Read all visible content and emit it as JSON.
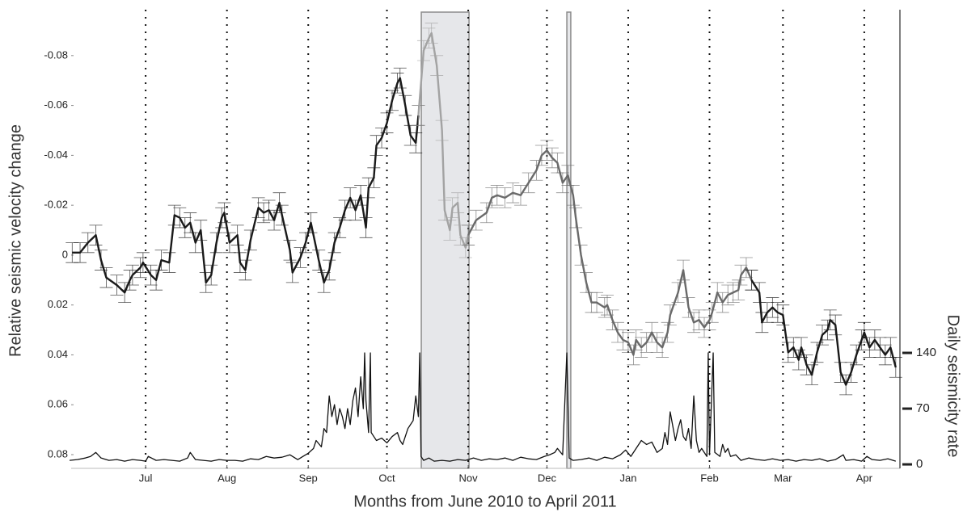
{
  "chart_data": {
    "type": "line",
    "x_label": "Months from June 2010 to April 2011",
    "y_label": "Relative seismic velocity change",
    "y2_label": "Daily seismicity rate",
    "xlim": [
      1.6,
      317.6
    ],
    "xticks": [
      {
        "value": 30,
        "label": "Jul"
      },
      {
        "value": 61,
        "label": "Aug"
      },
      {
        "value": 92,
        "label": "Sep"
      },
      {
        "value": 122,
        "label": "Oct"
      },
      {
        "value": 153,
        "label": "Nov"
      },
      {
        "value": 183,
        "label": "Dec"
      },
      {
        "value": 214,
        "label": "Jan"
      },
      {
        "value": 245,
        "label": "Feb"
      },
      {
        "value": 273,
        "label": "Mar"
      },
      {
        "value": 304,
        "label": "Apr"
      }
    ],
    "ylim": [
      0.0855,
      -0.0984
    ],
    "yticks": [
      -0.08,
      -0.06,
      -0.04,
      -0.02,
      0,
      0.02,
      0.04,
      0.06,
      0.08
    ],
    "y2lim": [
      -5,
      571
    ],
    "y2ticks": [
      0,
      70,
      140
    ],
    "grid": true,
    "error_bar": 0.004,
    "spans": [
      [
        135.1,
        153.3
      ],
      [
        190.6,
        192.1
      ]
    ],
    "series": [
      {
        "color": "#1a1a1a",
        "x": [
          2,
          5,
          8,
          11,
          13,
          15,
          19,
          22,
          24,
          25,
          28,
          29,
          32,
          34,
          36,
          39,
          41,
          43,
          45,
          47,
          49,
          51,
          53,
          55,
          57,
          59,
          60,
          62,
          65,
          66,
          68,
          70,
          73,
          75,
          77,
          79,
          81,
          82,
          85,
          86,
          89,
          91,
          93,
          96,
          98,
          100,
          102,
          104,
          106,
          108,
          110,
          112,
          114,
          115,
          117,
          118,
          120,
          122,
          124,
          126,
          127,
          129,
          131,
          133,
          134
        ],
        "values": [
          -0.001,
          -0.001,
          -0.005,
          -0.008,
          0.002,
          0.009,
          0.012,
          0.015,
          0.01,
          0.008,
          0.005,
          0.003,
          0.008,
          0.01,
          0.002,
          0.003,
          -0.016,
          -0.015,
          -0.011,
          -0.013,
          -0.005,
          -0.01,
          0.011,
          0.008,
          -0.005,
          -0.015,
          -0.017,
          -0.005,
          -0.008,
          0.003,
          0.006,
          -0.006,
          -0.019,
          -0.017,
          -0.018,
          -0.014,
          -0.021,
          -0.016,
          -0.002,
          0.007,
          0.001,
          -0.005,
          -0.013,
          0.002,
          0.011,
          0.006,
          -0.005,
          -0.011,
          -0.018,
          -0.023,
          -0.018,
          -0.024,
          -0.011,
          -0.027,
          -0.031,
          -0.044,
          -0.047,
          -0.053,
          -0.062,
          -0.069,
          -0.071,
          -0.06,
          -0.048,
          -0.045,
          -0.056
        ]
      },
      {
        "color": "#a3a3a3",
        "x": [
          134,
          136,
          138,
          139,
          141,
          143,
          144,
          146,
          147,
          149,
          150,
          152,
          153
        ],
        "values": [
          -0.056,
          -0.082,
          -0.087,
          -0.089,
          -0.076,
          -0.05,
          -0.018,
          -0.01,
          -0.019,
          -0.021,
          -0.008,
          -0.003,
          -0.008
        ]
      },
      {
        "color": "#6a6a6a",
        "x": [
          153,
          156,
          160,
          162,
          164,
          167,
          170,
          173,
          176,
          179,
          181,
          183,
          185,
          187,
          189,
          191,
          193,
          194,
          196,
          198,
          200,
          202,
          205,
          206,
          208,
          210,
          212,
          214,
          216,
          217,
          219,
          221,
          223,
          225,
          227,
          229,
          230,
          233,
          235,
          237,
          239,
          241,
          243,
          245,
          246,
          248,
          250,
          252,
          254,
          256,
          257,
          259,
          261
        ],
        "values": [
          -0.008,
          -0.014,
          -0.017,
          -0.023,
          -0.024,
          -0.023,
          -0.025,
          -0.024,
          -0.029,
          -0.034,
          -0.04,
          -0.042,
          -0.039,
          -0.037,
          -0.029,
          -0.032,
          -0.024,
          -0.015,
          0,
          0.011,
          0.019,
          0.019,
          0.021,
          0.02,
          0.026,
          0.031,
          0.034,
          0.035,
          0.04,
          0.034,
          0.037,
          0.035,
          0.031,
          0.035,
          0.037,
          0.031,
          0.024,
          0.015,
          0.006,
          0.021,
          0.027,
          0.026,
          0.029,
          0.026,
          0.023,
          0.015,
          0.019,
          0.016,
          0.015,
          0.014,
          0.008,
          0.005,
          0.01
        ]
      },
      {
        "color": "#1a1a1a",
        "x": [
          261,
          264,
          265,
          267,
          269,
          271,
          273,
          275,
          277,
          279,
          280,
          282,
          284,
          286,
          288,
          290,
          291,
          293,
          295,
          297,
          299,
          301,
          303,
          304,
          306,
          308,
          310,
          312,
          314,
          316
        ],
        "values": [
          0.01,
          0.015,
          0.027,
          0.023,
          0.021,
          0.023,
          0.024,
          0.039,
          0.037,
          0.042,
          0.037,
          0.044,
          0.048,
          0.039,
          0.032,
          0.03,
          0.026,
          0.028,
          0.047,
          0.052,
          0.047,
          0.04,
          0.034,
          0.031,
          0.037,
          0.034,
          0.037,
          0.04,
          0.037,
          0.045
        ]
      },
      {
        "color": "#111111",
        "axis": "y2",
        "x": [
          1,
          4,
          7,
          9,
          11,
          13,
          16,
          19,
          22,
          25,
          28,
          30,
          31,
          34,
          37,
          40,
          43,
          46,
          47,
          49,
          52,
          55,
          58,
          61,
          64,
          67,
          70,
          73,
          76,
          79,
          82,
          85,
          88,
          90,
          92,
          94,
          95,
          97,
          98,
          99,
          100,
          101,
          102,
          103,
          104,
          105,
          106,
          107,
          108,
          109,
          110,
          111,
          112,
          113,
          113.5,
          114,
          115,
          115.7,
          116,
          117,
          118,
          120,
          122,
          124,
          126,
          127,
          128,
          129,
          130,
          131,
          132,
          133,
          134,
          134.5,
          135,
          136,
          138,
          140,
          143,
          146,
          149,
          152,
          155,
          158,
          161,
          164,
          167,
          170,
          173,
          176,
          179,
          182,
          184,
          186,
          187,
          189,
          190.6,
          191.5,
          193,
          196,
          199,
          202,
          205,
          208,
          211,
          213,
          215,
          217,
          219,
          221,
          223,
          225,
          227,
          228,
          229,
          230,
          232,
          233,
          234,
          235,
          236,
          237,
          238,
          239,
          240,
          241,
          242,
          244,
          244.5,
          245,
          246.4,
          247,
          249,
          250,
          251,
          252,
          253,
          255,
          257,
          260,
          263,
          266,
          269,
          272,
          275,
          278,
          281,
          284,
          287,
          290,
          293,
          296,
          297,
          300,
          303,
          305,
          307,
          310,
          313,
          316
        ],
        "values": [
          5,
          6,
          8,
          10,
          15,
          8,
          5,
          6,
          4,
          6,
          5,
          4,
          10,
          5,
          6,
          5,
          4,
          8,
          15,
          6,
          5,
          4,
          6,
          5,
          5,
          4,
          7,
          6,
          10,
          8,
          9,
          12,
          6,
          10,
          14,
          20,
          30,
          22,
          45,
          40,
          86,
          60,
          75,
          50,
          70,
          60,
          45,
          70,
          50,
          80,
          96,
          60,
          110,
          70,
          140,
          80,
          40,
          140,
          40,
          35,
          30,
          33,
          27,
          35,
          40,
          30,
          25,
          35,
          45,
          50,
          55,
          86,
          60,
          140,
          10,
          5,
          8,
          4,
          5,
          4,
          6,
          5,
          8,
          5,
          7,
          6,
          8,
          5,
          9,
          7,
          6,
          10,
          12,
          15,
          20,
          12,
          140,
          8,
          5,
          6,
          8,
          5,
          9,
          7,
          12,
          18,
          10,
          20,
          30,
          25,
          28,
          15,
          20,
          40,
          25,
          66,
          30,
          45,
          56,
          35,
          30,
          45,
          20,
          86,
          30,
          15,
          20,
          10,
          140,
          12,
          140,
          15,
          10,
          25,
          15,
          20,
          10,
          12,
          5,
          8,
          6,
          5,
          7,
          5,
          6,
          4,
          6,
          5,
          7,
          4,
          6,
          12,
          5,
          6,
          4,
          10,
          6,
          5,
          7,
          4
        ]
      }
    ]
  }
}
